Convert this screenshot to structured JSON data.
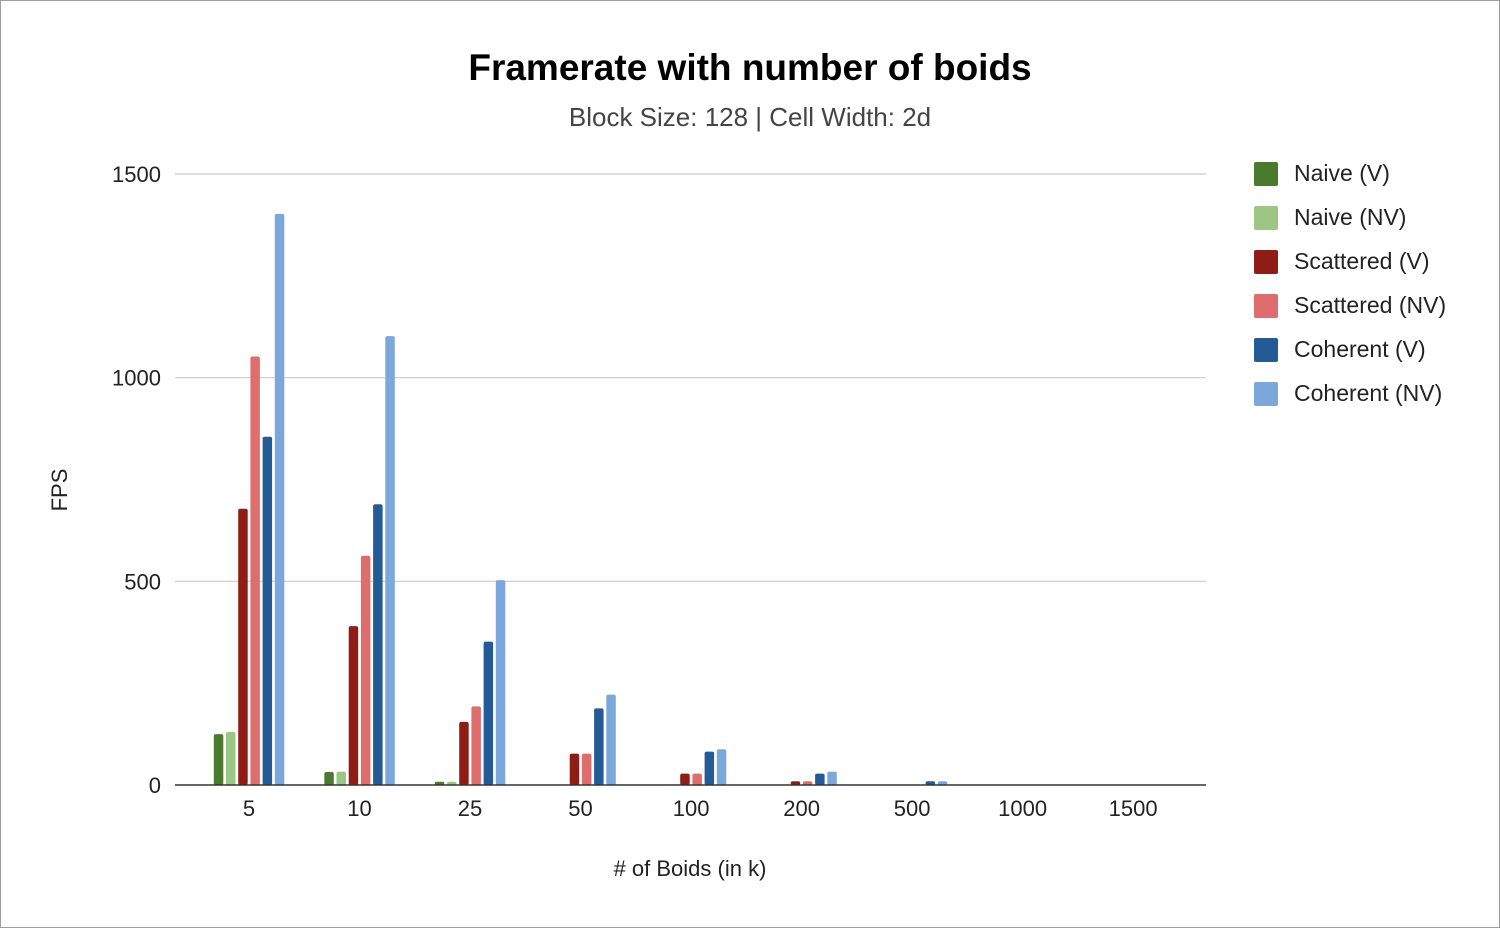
{
  "chart_data": {
    "type": "bar",
    "title": "Framerate with number of boids",
    "subtitle": "Block Size: 128 | Cell Width: 2d",
    "xlabel": "# of Boids (in k)",
    "ylabel": "FPS",
    "categories": [
      "5",
      "10",
      "25",
      "50",
      "100",
      "200",
      "500",
      "1000",
      "1500"
    ],
    "ylim": [
      0,
      1500
    ],
    "yticks": [
      0,
      500,
      1000,
      1500
    ],
    "grid": true,
    "legend_position": "right",
    "series": [
      {
        "name": "Naive (V)",
        "color": "#4a7a2e",
        "values": [
          125,
          32,
          8,
          0,
          0,
          0,
          0,
          0,
          0
        ]
      },
      {
        "name": "Naive (NV)",
        "color": "#9dc685",
        "values": [
          130,
          33,
          8,
          0,
          0,
          0,
          0,
          0,
          0
        ]
      },
      {
        "name": "Scattered (V)",
        "color": "#8f1d15",
        "values": [
          678,
          390,
          155,
          77,
          28,
          9,
          0,
          0,
          0
        ]
      },
      {
        "name": "Scattered (NV)",
        "color": "#e06d6d",
        "values": [
          1052,
          563,
          193,
          77,
          28,
          9,
          0,
          0,
          0
        ]
      },
      {
        "name": "Coherent (V)",
        "color": "#245a96",
        "values": [
          855,
          689,
          352,
          188,
          82,
          28,
          9,
          0,
          0
        ]
      },
      {
        "name": "Coherent (NV)",
        "color": "#7ba7db",
        "values": [
          1402,
          1102,
          503,
          222,
          88,
          33,
          9,
          0,
          0
        ]
      }
    ]
  }
}
